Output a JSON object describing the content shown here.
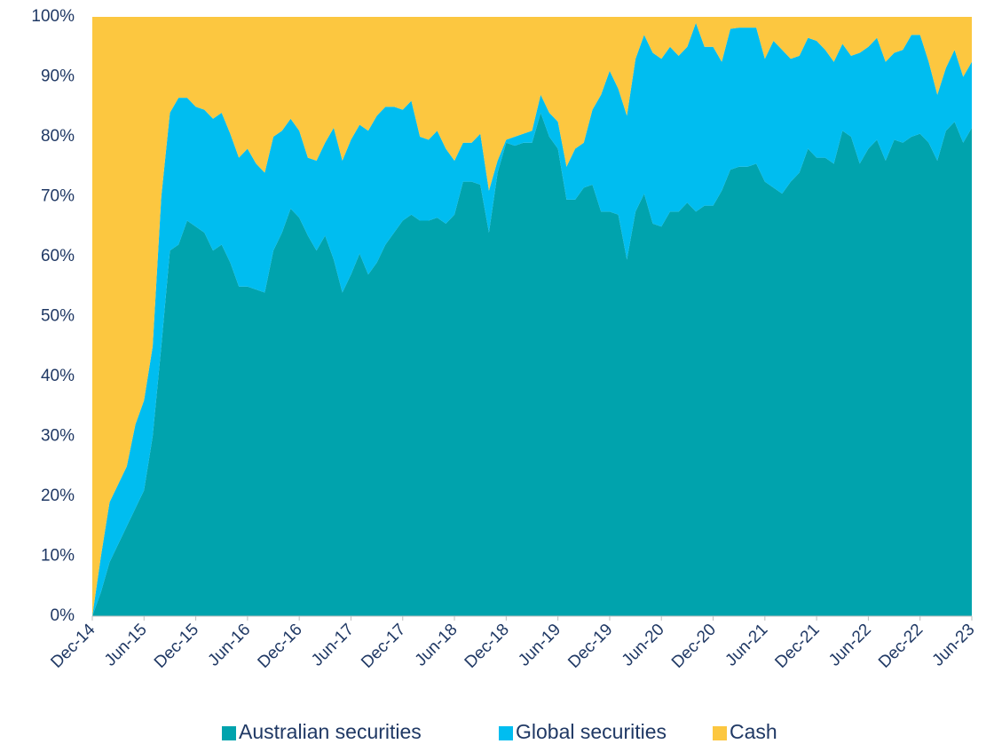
{
  "chart_data": {
    "type": "stacked_area",
    "categories": [
      "Dec-14",
      null,
      null,
      null,
      null,
      null,
      "Jun-15",
      null,
      null,
      null,
      null,
      null,
      "Dec-15",
      null,
      null,
      null,
      null,
      null,
      "Jun-16",
      null,
      null,
      null,
      null,
      null,
      "Dec-16",
      null,
      null,
      null,
      null,
      null,
      "Jun-17",
      null,
      null,
      null,
      null,
      null,
      "Dec-17",
      null,
      null,
      null,
      null,
      null,
      "Jun-18",
      null,
      null,
      null,
      null,
      null,
      "Dec-18",
      null,
      null,
      null,
      null,
      null,
      "Jun-19",
      null,
      null,
      null,
      null,
      null,
      "Dec-19",
      null,
      null,
      null,
      null,
      null,
      "Jun-20",
      null,
      null,
      null,
      null,
      null,
      "Dec-20",
      null,
      null,
      null,
      null,
      null,
      "Jun-21",
      null,
      null,
      null,
      null,
      null,
      "Dec-21",
      null,
      null,
      null,
      null,
      null,
      "Jun-22",
      null,
      null,
      null,
      null,
      null,
      "Dec-22",
      null,
      null,
      null,
      null,
      null,
      "Jun-23"
    ],
    "series": [
      {
        "name": "Australian securities",
        "color": "#00a3ad",
        "values": [
          0,
          4,
          9,
          12,
          15,
          18,
          21,
          30,
          45,
          61,
          62,
          66,
          65,
          64,
          61,
          62,
          59,
          55,
          55,
          54.5,
          54,
          61,
          64,
          68,
          66.5,
          63.5,
          61,
          63.5,
          59.5,
          54,
          57,
          60.5,
          57,
          59,
          62,
          64,
          66,
          67,
          66,
          66,
          66.5,
          65.5,
          67,
          72.5,
          72.5,
          72,
          64,
          74,
          79,
          78.5,
          79,
          79,
          84,
          80,
          78,
          69.5,
          69.5,
          71.5,
          72,
          67.5,
          67.5,
          67,
          59.5,
          67.5,
          70.5,
          65.5,
          65,
          67.5,
          67.5,
          69,
          67.5,
          68.5,
          68.5,
          71,
          74.5,
          75,
          75,
          75.5,
          72.5,
          71.5,
          70.5,
          72.5,
          74,
          78,
          76.5,
          76.5,
          75.5,
          81,
          80,
          75.5,
          78,
          79.5,
          76,
          79.5,
          79,
          80,
          80.5,
          79,
          76,
          81,
          82.5,
          79,
          81.5
        ]
      },
      {
        "name": "Global securities",
        "color": "#00bdf0",
        "values": [
          0,
          6,
          10,
          10,
          10,
          14,
          15,
          15,
          25,
          23,
          24.5,
          20.5,
          20,
          20.5,
          22,
          22,
          21.5,
          21.5,
          23,
          21,
          20,
          19,
          17,
          15,
          14.5,
          13,
          15,
          15.5,
          22,
          22,
          22.5,
          21.5,
          24,
          24.5,
          23,
          21,
          18.5,
          19,
          14,
          13.5,
          14.5,
          12.5,
          9,
          6.5,
          6.5,
          8.5,
          7,
          2,
          0.5,
          1.5,
          1.5,
          2,
          3,
          4,
          4.5,
          5.5,
          8.5,
          7.5,
          12.5,
          19.5,
          23.5,
          21,
          24,
          25.5,
          26.5,
          28.5,
          28,
          27.5,
          26,
          26,
          31.5,
          26.5,
          26.5,
          21.5,
          23.5,
          23.2,
          23.2,
          22.7,
          20.5,
          24.5,
          24,
          20.5,
          19.5,
          18.5,
          19.5,
          18,
          17,
          14.5,
          13.5,
          18.5,
          17,
          17,
          16.5,
          14.5,
          15.5,
          17,
          16.5,
          13.5,
          11,
          10.5,
          12,
          11,
          11
        ]
      },
      {
        "name": "Cash",
        "color": "#fcc740",
        "values": [
          100,
          90,
          81,
          78,
          75,
          68,
          64,
          55,
          30,
          16,
          13.5,
          13.5,
          15,
          15.5,
          17,
          16,
          19.5,
          23.5,
          22,
          24.5,
          26,
          20,
          19,
          17,
          19,
          23.5,
          24,
          21,
          18.5,
          24,
          20.5,
          18,
          19,
          16.5,
          15,
          15,
          15.5,
          14,
          20,
          20.5,
          19,
          22,
          24,
          21,
          21,
          19.5,
          29,
          24,
          20.5,
          20,
          19.5,
          19,
          13,
          16,
          17.5,
          25,
          22,
          21,
          15.5,
          13,
          9,
          12,
          16.5,
          7,
          3,
          6,
          7,
          5,
          6.5,
          5,
          1,
          5,
          5,
          7.5,
          2,
          1.8,
          1.8,
          1.8,
          7,
          4,
          5.5,
          7,
          6.5,
          3.5,
          4,
          5.5,
          7.5,
          4.5,
          6.5,
          6,
          5,
          3.5,
          7.5,
          6,
          5.5,
          3,
          3,
          7.5,
          13,
          8.5,
          5.5,
          10,
          7.5
        ]
      }
    ],
    "ylim": [
      0,
      100
    ],
    "yticks": [
      {
        "value": 0,
        "label": "0%"
      },
      {
        "value": 10,
        "label": "10%"
      },
      {
        "value": 20,
        "label": "20%"
      },
      {
        "value": 30,
        "label": "30%"
      },
      {
        "value": 40,
        "label": "40%"
      },
      {
        "value": 50,
        "label": "50%"
      },
      {
        "value": 60,
        "label": "60%"
      },
      {
        "value": 70,
        "label": "70%"
      },
      {
        "value": 80,
        "label": "80%"
      },
      {
        "value": 90,
        "label": "90%"
      },
      {
        "value": 100,
        "label": "100%"
      }
    ],
    "legend": "bottom"
  }
}
